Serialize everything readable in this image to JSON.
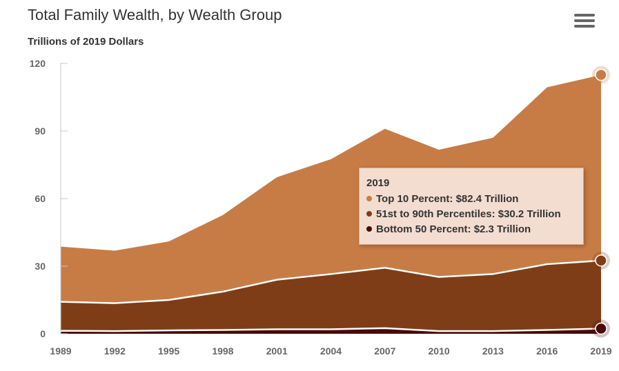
{
  "title": "Total Family Wealth, by Wealth Group",
  "subtitle": "Trillions of 2019 Dollars",
  "menu_icon": "hamburger-menu-icon",
  "chart_data": {
    "type": "area",
    "stacked": true,
    "x": [
      "1989",
      "1992",
      "1995",
      "1998",
      "2001",
      "2004",
      "2007",
      "2010",
      "2013",
      "2016",
      "2019"
    ],
    "ylim": [
      0,
      120
    ],
    "yticks": [
      0,
      30,
      60,
      90,
      120
    ],
    "series": [
      {
        "name": "Bottom 50 Percent",
        "color": "#4a0a06",
        "values": [
          1.3,
          1.2,
          1.5,
          1.7,
          2.0,
          2.0,
          2.5,
          1.2,
          1.2,
          1.7,
          2.3
        ]
      },
      {
        "name": "51st to 90th Percentiles",
        "color": "#7f3d17",
        "values": [
          12.9,
          12.4,
          13.5,
          17.0,
          22.0,
          24.5,
          26.8,
          24.0,
          25.3,
          29.2,
          30.2
        ]
      },
      {
        "name": "Top 10 Percent",
        "color": "#c87c45",
        "values": [
          24.5,
          23.3,
          26.0,
          34.0,
          45.5,
          51.0,
          61.7,
          56.5,
          60.5,
          78.5,
          82.4
        ]
      }
    ]
  },
  "tooltip": {
    "title": "2019",
    "rows": [
      {
        "label": "Top 10 Percent: $82.4 Trillion",
        "color": "#c87c45"
      },
      {
        "label": "51st to 90th Percentiles: $30.2 Trillion",
        "color": "#7f3d17"
      },
      {
        "label": "Bottom 50 Percent: $2.3 Trillion",
        "color": "#4a0a06"
      }
    ]
  }
}
